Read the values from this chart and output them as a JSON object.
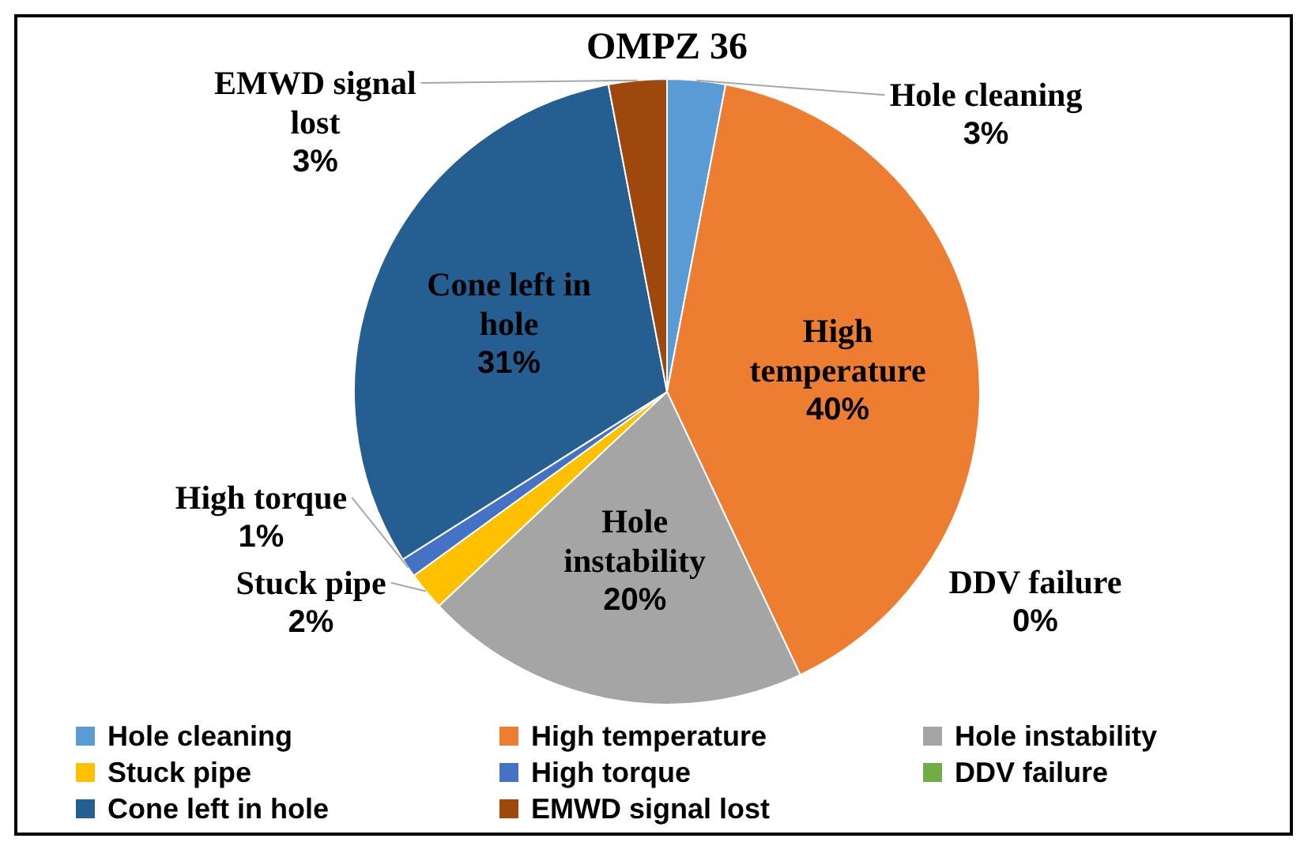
{
  "chart_data": {
    "type": "pie",
    "title": "OMPZ 36",
    "categories": [
      "Hole cleaning",
      "High temperature",
      "Hole instability",
      "Stuck pipe",
      "High torque",
      "DDV failure",
      "Cone left in hole",
      "EMWD signal lost"
    ],
    "values": [
      3,
      40,
      20,
      2,
      1,
      0,
      31,
      3
    ],
    "value_labels": [
      "3%",
      "40%",
      "20%",
      "2%",
      "1%",
      "0%",
      "31%",
      "3%"
    ],
    "colors": [
      "#5b9bd5",
      "#ed7d31",
      "#a5a5a5",
      "#ffc000",
      "#4472c4",
      "#70ad47",
      "#255e91",
      "#9e480e"
    ],
    "legend": "bottom"
  }
}
